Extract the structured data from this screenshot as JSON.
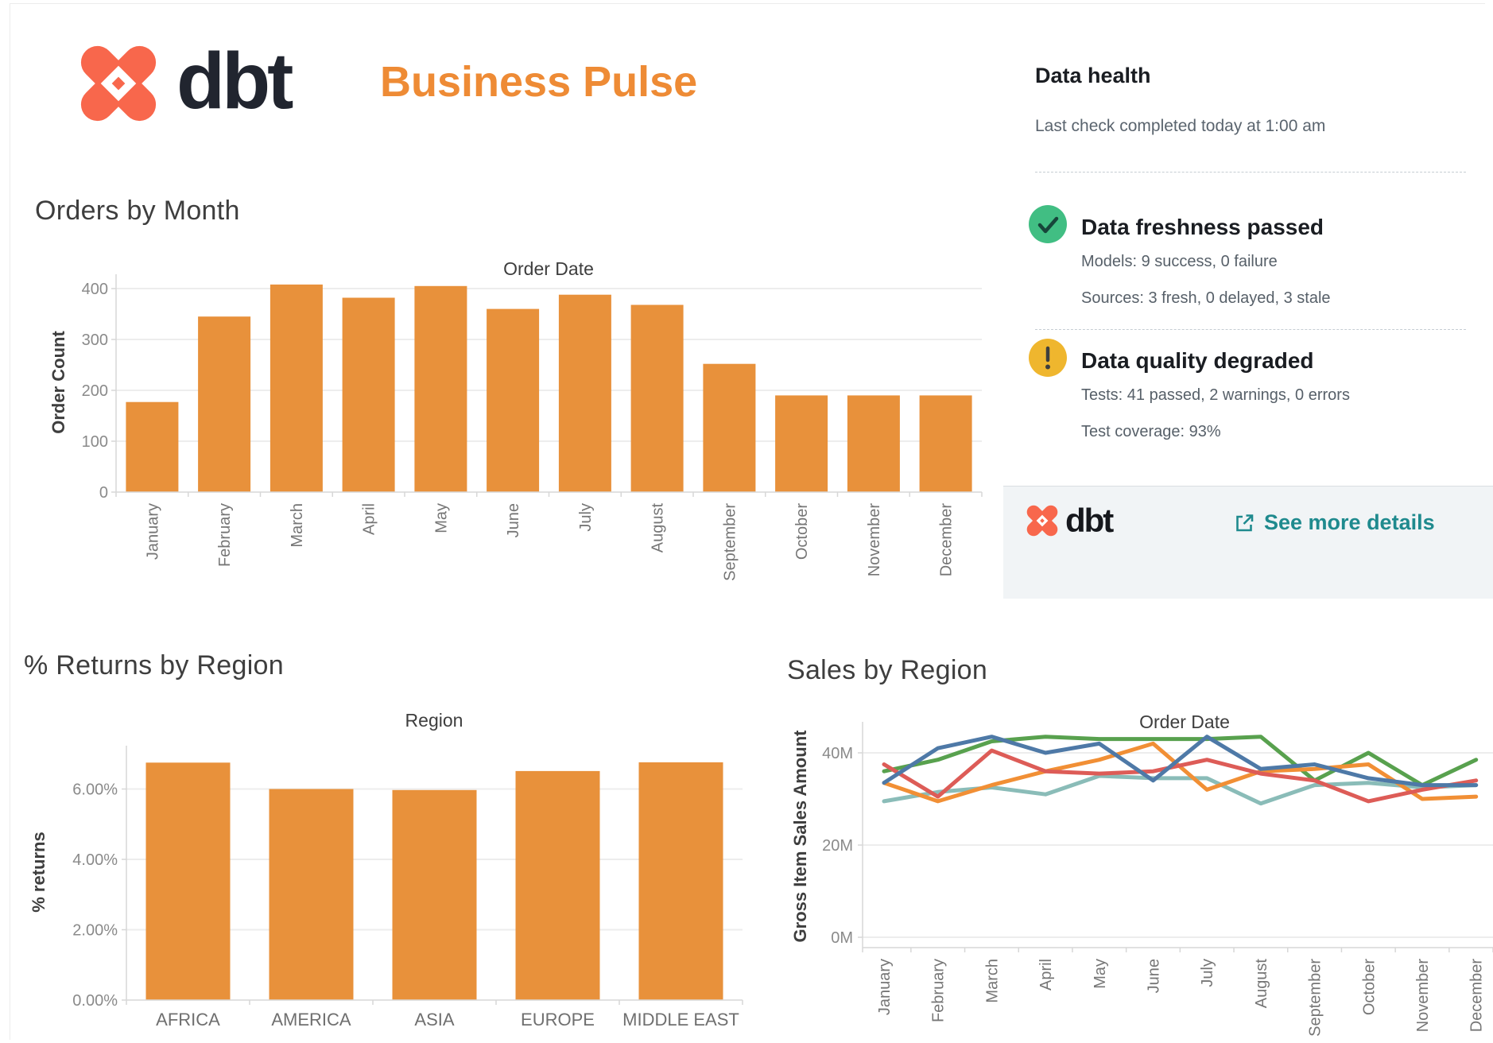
{
  "header": {
    "logo_text": "dbt",
    "title": "Business Pulse"
  },
  "data_health": {
    "title": "Data health",
    "subtitle": "Last check completed today at 1:00 am",
    "items": [
      {
        "icon": "check-icon",
        "title": "Data freshness passed",
        "lines": [
          "Models: 9 success, 0 failure",
          "Sources: 3 fresh, 0 delayed, 3 stale"
        ]
      },
      {
        "icon": "warning-icon",
        "title": "Data quality degraded",
        "lines": [
          "Tests: 41 passed, 2 warnings, 0 errors",
          "Test coverage: 93%"
        ]
      }
    ],
    "footer": {
      "logo_text": "dbt",
      "link_label": "See more details"
    }
  },
  "colors": {
    "title_orange": "#EE8B35",
    "bar_orange": "#E8913B",
    "dbt_coral": "#F8674C",
    "wordmark_navy": "#21252F",
    "success_green": "#41BE83",
    "warning_yellow": "#EFB62E",
    "link_teal": "#1F8A8E"
  },
  "chart_data": [
    {
      "id": "orders-by-month",
      "type": "bar",
      "title": "Orders by Month",
      "xlabel": "Order Date",
      "ylabel": "Order Count",
      "categories": [
        "January",
        "February",
        "March",
        "April",
        "May",
        "June",
        "July",
        "August",
        "September",
        "October",
        "November",
        "December"
      ],
      "values": [
        177,
        345,
        408,
        382,
        405,
        360,
        388,
        368,
        252,
        190,
        190,
        190
      ],
      "yticks": [
        0,
        100,
        200,
        300,
        400
      ],
      "ytick_labels": [
        "0",
        "100",
        "200",
        "300",
        "400"
      ],
      "ylim": [
        0,
        430
      ],
      "bar_color": "#E8913B",
      "grid": true
    },
    {
      "id": "returns-by-region",
      "type": "bar",
      "title": "% Returns by Region",
      "xlabel": "Region",
      "ylabel": "% returns",
      "categories": [
        "AFRICA",
        "AMERICA",
        "ASIA",
        "EUROPE",
        "MIDDLE EAST"
      ],
      "values": [
        6.75,
        6.0,
        5.97,
        6.51,
        6.76
      ],
      "yticks": [
        0,
        2,
        4,
        6
      ],
      "ytick_labels": [
        "0.00%",
        "2.00%",
        "4.00%",
        "6.00%"
      ],
      "ylim": [
        0,
        7.2
      ],
      "bar_color": "#E8913B",
      "grid": true
    },
    {
      "id": "sales-by-region",
      "type": "line",
      "title": "Sales by Region",
      "xlabel": "Order Date",
      "ylabel": "Gross Item Sales Amount",
      "unit": "M",
      "categories": [
        "January",
        "February",
        "March",
        "April",
        "May",
        "June",
        "July",
        "August",
        "September",
        "October",
        "November",
        "December"
      ],
      "series": [
        {
          "name": "green",
          "color": "#58A14E",
          "values": [
            36,
            38.5,
            42.5,
            43.5,
            43,
            43,
            43,
            43.5,
            34,
            40,
            33,
            38.5
          ]
        },
        {
          "name": "teal",
          "color": "#8ABCB8",
          "values": [
            29.5,
            31.5,
            32.5,
            31,
            35,
            34.5,
            34.5,
            29,
            33,
            33.5,
            32.5,
            33
          ]
        },
        {
          "name": "orange",
          "color": "#F18F35",
          "values": [
            33.5,
            29.5,
            33,
            36,
            38.5,
            42,
            32,
            36,
            36.5,
            37.5,
            30,
            30.5
          ]
        },
        {
          "name": "red",
          "color": "#DD5C57",
          "values": [
            37.5,
            30.5,
            40.5,
            36,
            35.5,
            36,
            38.5,
            35.5,
            34,
            29.5,
            32,
            34
          ]
        },
        {
          "name": "blue",
          "color": "#4E79A7",
          "values": [
            33.5,
            41,
            43.5,
            40,
            42,
            34,
            43.5,
            36.5,
            37.5,
            34.5,
            33,
            33
          ]
        }
      ],
      "yticks": [
        0,
        20,
        40
      ],
      "ytick_labels": [
        "0M",
        "20M",
        "40M"
      ],
      "ylim": [
        0,
        47
      ],
      "grid": true,
      "legend": "none"
    }
  ]
}
